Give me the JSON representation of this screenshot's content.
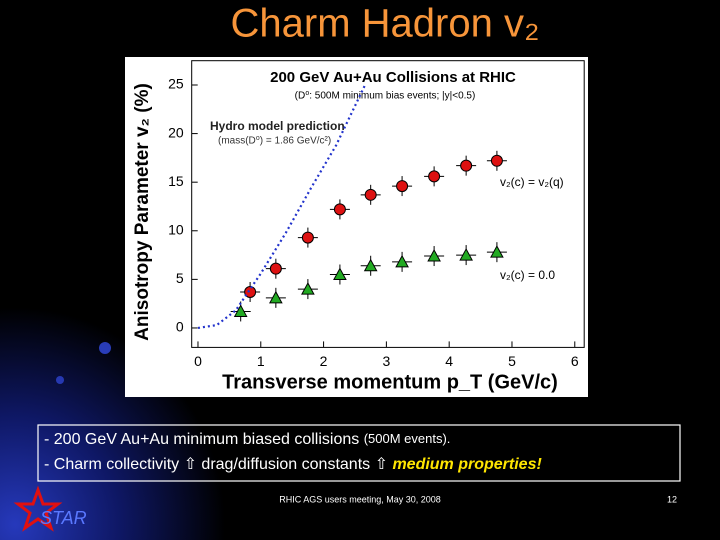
{
  "slide": {
    "title": "Charm Hadron v₂",
    "bullets": [
      {
        "text": "- 200 GeV Au+Au minimum biased collisions ",
        "note": "(500M events)."
      },
      {
        "text": "- Charm collectivity ⇧ drag/diffusion constants ⇧ ",
        "emphasis": "medium properties!"
      }
    ],
    "footer": "RHIC AGS users meeting, May 30, 2008",
    "page_number": "12",
    "logo": "STAR"
  },
  "chart_data": {
    "type": "scatter",
    "title": "200 GeV Au+Au Collisions at RHIC",
    "subtitle": "(D⁰: 500M minimum bias events;  |y|<0.5)",
    "annotations": [
      "(mass(D⁰) = 1.86 GeV/c²)"
    ],
    "x_label": "Transverse momentum p_T (GeV/c)",
    "y_label": "Anisotropy Parameter v₂ (%)",
    "xlim": [
      -0.1,
      6.15
    ],
    "ylim": [
      -2,
      27.5
    ],
    "xticks": [
      0,
      1,
      2,
      3,
      4,
      5,
      6
    ],
    "yticks": [
      0,
      5,
      10,
      15,
      20,
      25
    ],
    "series": [
      {
        "name": "v₂(c) = v₂(q)",
        "color": "#dd1111",
        "marker": "circle",
        "x": [
          0.83,
          1.24,
          1.75,
          2.26,
          2.75,
          3.25,
          3.76,
          4.27,
          4.76
        ],
        "values": [
          3.7,
          6.1,
          9.3,
          12.2,
          13.7,
          14.6,
          15.6,
          16.7,
          17.2
        ]
      },
      {
        "name": "v₂(c) = 0.0",
        "color": "#22aa22",
        "marker": "triangle",
        "x": [
          0.68,
          1.24,
          1.75,
          2.26,
          2.75,
          3.25,
          3.76,
          4.27,
          4.76
        ],
        "values": [
          1.7,
          3.1,
          4.0,
          5.5,
          6.4,
          6.8,
          7.4,
          7.5,
          7.8
        ]
      },
      {
        "name": "Hydro model prediction",
        "color": "#2233cc",
        "marker": "dotted-line",
        "x": [
          0,
          0.3,
          0.6,
          1.0,
          1.4,
          1.8,
          2.2,
          2.66
        ],
        "values": [
          0,
          0.3,
          1.8,
          5.6,
          9.8,
          14.4,
          18.8,
          25
        ]
      }
    ]
  }
}
